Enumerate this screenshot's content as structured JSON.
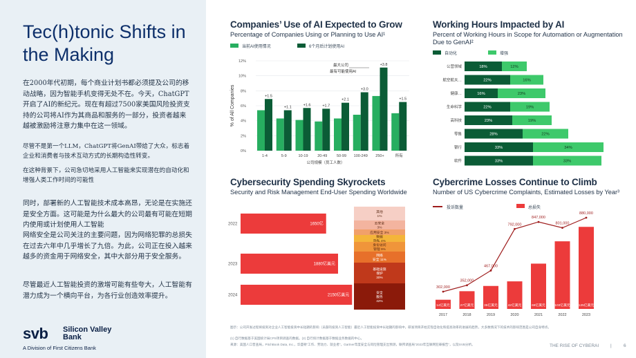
{
  "sidebar": {
    "title": "Tec(h)tonic Shifts in the Making",
    "paragraphs": [
      "在2000年代初期，每个商业计划书都必须提及公司的移动战略，因为智能手机变得无处不在。今天，ChatGPT开启了AI的新纪元。现在有超过7500家美国风险投资支持的公司将AI作为其商品和服务的一部分，投资者越来越被激励将注意力集中在这一领域。",
      "尽管不是第一个LLM，ChatGPT将GenAI带给了大众，标志着企业和消费者与技术互动方式的长期构造性转变。",
      "在这种背景下，公司急切地采用人工智能来实现潜在的自动化和增强人类工作时间的可能性",
      "同时，部署新的人工智能技术成本高昂，无论是在实施还是安全方面。这可能是为什么最大的公司最有可能在短期内使用或计划使用人工智能",
      "网络安全是公司关注的主要问题，因为网络犯罪的总损失在过去六年中几乎增长了九倍。为此，公司正在投入越来越多的资金用于网络安全，其中大部分用于安全服务。",
      "尽管最近人工智能投资的激增可能有些夸大，人工智能有潜力成为一个横向平台，为各行业创造效率提升。"
    ],
    "logo": {
      "mark": "svb",
      "name": "Silicon Valley Bank",
      "division": "A Division of First Citizens Bank"
    }
  },
  "panel1": {
    "title": "Companies’ Use of AI Expected to Grow",
    "subtitle": "Percentage of Companies Using or Planning to Use AI¹",
    "legend": [
      "当前AI使用情况",
      "6个月后计划使用AI"
    ],
    "colors": {
      "current": "#27ae60",
      "planned": "#0b5c36"
    },
    "annotation_line1": "最大公司",
    "annotation_line2": "最有可能使用AI",
    "ylabel": "% of All Companies",
    "xlabel": "公司规模（员工人数）"
  },
  "panel2": {
    "title": "Working Hours Impacted by AI",
    "subtitle": "Percent of Working Hours in Scope for Automation or Augmentation Due to GenAI²",
    "legend": [
      "自动化",
      "增强"
    ],
    "colors": {
      "automation": "#0b5c36",
      "augmentation": "#3ec96b"
    }
  },
  "panel3": {
    "title": "Cybersecurity Spending Skyrockets",
    "subtitle": "Security and Risk Management End-User Spending Worldwide",
    "colors": {
      "bar": "#ec3b3b"
    },
    "stack": [
      {
        "label": "其他\n1%",
        "color": "#f6cfc5"
      },
      {
        "label": "云安全\n3%",
        "color": "#f3b49f"
      },
      {
        "label": "应用安全 3%",
        "color": "#f1a06a"
      },
      {
        "label": "数据\n隐私 4%",
        "color": "#f4b53a"
      },
      {
        "label": "身份访问\n管理 9%",
        "color": "#f0953a"
      },
      {
        "label": "网络\n安全 11%",
        "color": "#e7702a"
      },
      {
        "label": "基础设施\n保护\n30%",
        "color": "#c0391b"
      },
      {
        "label": "安全\n服务\n42%",
        "color": "#8b1a0a"
      }
    ]
  },
  "panel4": {
    "title": "Cybercrime Losses Continue to Climb",
    "subtitle": "Number of US Cybercrime Complaints, Estimated Losses by Year³",
    "legend": [
      "投诉数量",
      "总损失"
    ],
    "colors": {
      "line": "#9e1c1c",
      "bars": "#ec3b3b"
    }
  },
  "chart_data": [
    {
      "type": "bar",
      "title": "Companies’ Use of AI Expected to Grow",
      "ylabel": "% of All Companies",
      "xlabel": "公司规模（员工人数）",
      "categories": [
        "1-4",
        "5-9",
        "10-19",
        "20-49",
        "50-99",
        "100-249",
        "250+",
        "所有"
      ],
      "ylim": [
        0,
        12
      ],
      "yticks": [
        "0%",
        "2%",
        "4%",
        "6%",
        "8%",
        "10%",
        "12%"
      ],
      "series": [
        {
          "name": "当前AI使用情况",
          "values": [
            5.4,
            4.3,
            4.1,
            3.9,
            4.3,
            4.8,
            7.3,
            5.0
          ]
        },
        {
          "name": "6个月后计划使用AI",
          "values": [
            6.9,
            5.4,
            5.7,
            5.6,
            6.4,
            7.8,
            11.1,
            6.5
          ]
        }
      ],
      "data_labels": [
        "+1.5",
        "+1.1",
        "+1.6",
        "+1.7",
        "+2.1",
        "+3.0",
        "+3.8",
        "+1.5"
      ]
    },
    {
      "type": "bar",
      "title": "Working Hours Impacted by AI",
      "categories": [
        "公营领域",
        "航空航天…",
        "健康…",
        "生命科学",
        "高科技",
        "零售",
        "银行",
        "软件"
      ],
      "series": [
        {
          "name": "自动化",
          "values": [
            18,
            22,
            16,
            22,
            23,
            28,
            33,
            33
          ],
          "labels": [
            "18%",
            "22%",
            "16%",
            "22%",
            "23%",
            "28%",
            "33%",
            "33%"
          ]
        },
        {
          "name": "增强",
          "values": [
            12,
            16,
            23,
            19,
            19,
            22,
            34,
            33
          ],
          "labels": [
            "12%",
            "16%",
            "23%",
            "19%",
            "19%",
            "22%",
            "34%",
            "33%"
          ]
        }
      ]
    },
    {
      "type": "bar",
      "title": "Cybersecurity Spending Skyrockets",
      "categories": [
        "2022",
        "2023",
        "2024"
      ],
      "values": [
        1650,
        1880,
        2150
      ],
      "labels": [
        "1650亿",
        "1880亿美元",
        "2150亿美元"
      ]
    },
    {
      "type": "bar",
      "title": "Cybercrime Losses Continue to Climb",
      "categories": [
        "2017",
        "2018",
        "2019",
        "2020",
        "2021",
        "2022",
        "2023"
      ],
      "series": [
        {
          "name": "总损失",
          "values": [
            1.4,
            2.7,
            3.5,
            4.2,
            6.9,
            10.3,
            12.5
          ],
          "labels": [
            "14亿美元",
            "27亿美元",
            "35亿美元",
            "42亿美元",
            "69亿美元",
            "103亿美元",
            "125亿美元"
          ]
        },
        {
          "name": "投诉数量",
          "values": [
            302000,
            352000,
            467000,
            792000,
            847000,
            801000,
            880000
          ],
          "labels": [
            "302,000",
            "352,000",
            "467,000",
            "792,000",
            "847,000",
            "801,000",
            "880,000"
          ]
        }
      ]
    }
  ],
  "footer": {
    "note_main": "图示：公司开发过程将投资对企业人工智能投资中长短期的影响（员部的投资人工智能）最近人工智能投资中长短期的影响中，研发项目开始实现自动化和提高效率的进展的趋势，大多数情况下的技术的影响范围是公司自身特点。",
    "note_sources": "(1) 自行数据基于美国统计局CPS项目调查的数据。(2) 自行统计数据基于数据业务数据的中心。",
    "note_more": "来源：美国人口普查局，PitchBook Data, Inc.，华盛顿“工作、劳动力、就业者”，Gartner年度安全与风险管理支出预测，联邦调查局“2023年互联网犯罪报告”，以及SVB分析。",
    "page_label": "THE RISE OF CYBERAI",
    "page_sep": "|",
    "page_number": "6"
  }
}
